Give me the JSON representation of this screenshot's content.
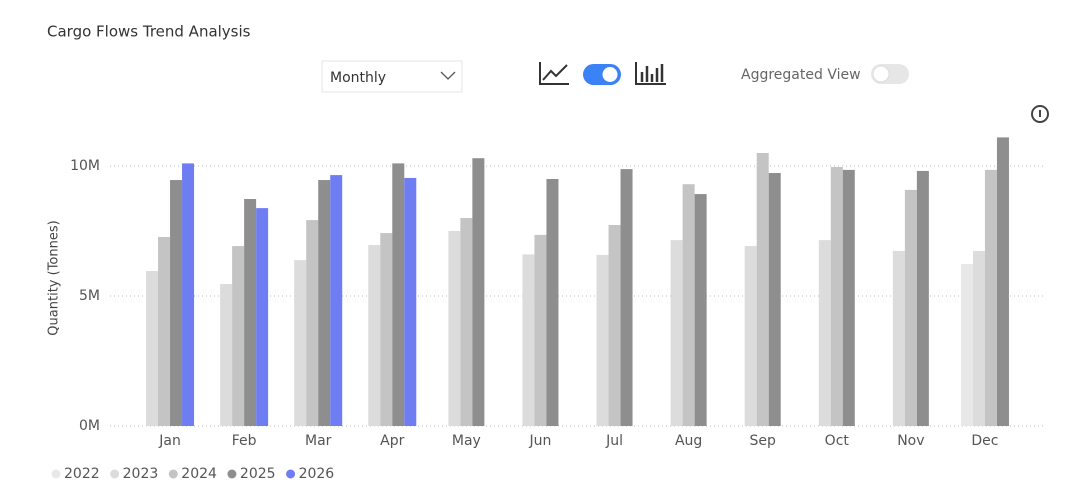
{
  "controls": {
    "period": "Monthly",
    "aggregated_label": "Aggregated View"
  },
  "chart_data": {
    "type": "bar",
    "title": "Cargo Flows Trend Analysis",
    "ylabel": "Quantity (Tonnes)",
    "categories": [
      "Jan",
      "Feb",
      "Mar",
      "Apr",
      "May",
      "Jun",
      "Jul",
      "Aug",
      "Sep",
      "Oct",
      "Nov",
      "Dec"
    ],
    "series": [
      {
        "name": "2022",
        "color": "#e8e8e8",
        "values": [
          null,
          null,
          null,
          null,
          null,
          null,
          null,
          null,
          null,
          null,
          null,
          6230000
        ]
      },
      {
        "name": "2023",
        "color": "#dcdcdc",
        "values": [
          5960000,
          5460000,
          6380000,
          6960000,
          7500000,
          6600000,
          6580000,
          7150000,
          6920000,
          7150000,
          6730000,
          6730000
        ]
      },
      {
        "name": "2024",
        "color": "#c4c4c4",
        "values": [
          7270000,
          6920000,
          7920000,
          7420000,
          8000000,
          7350000,
          7730000,
          9300000,
          10500000,
          9960000,
          9080000,
          9850000
        ]
      },
      {
        "name": "2025",
        "color": "#8e8e8e",
        "values": [
          9460000,
          8730000,
          9460000,
          10100000,
          10300000,
          9500000,
          9880000,
          8920000,
          9730000,
          9850000,
          9810000,
          11100000
        ]
      },
      {
        "name": "2026",
        "color": "#6f7df2",
        "values": [
          10100000,
          8380000,
          9650000,
          9540000,
          null,
          null,
          null,
          null,
          null,
          null,
          null,
          null
        ]
      }
    ],
    "ylim": [
      0,
      11500000
    ],
    "yticks": [
      {
        "value": 0,
        "label": "0M"
      },
      {
        "value": 5000000,
        "label": "5M"
      },
      {
        "value": 10000000,
        "label": "10M"
      }
    ],
    "grid": true,
    "legend": "bottom-left"
  }
}
